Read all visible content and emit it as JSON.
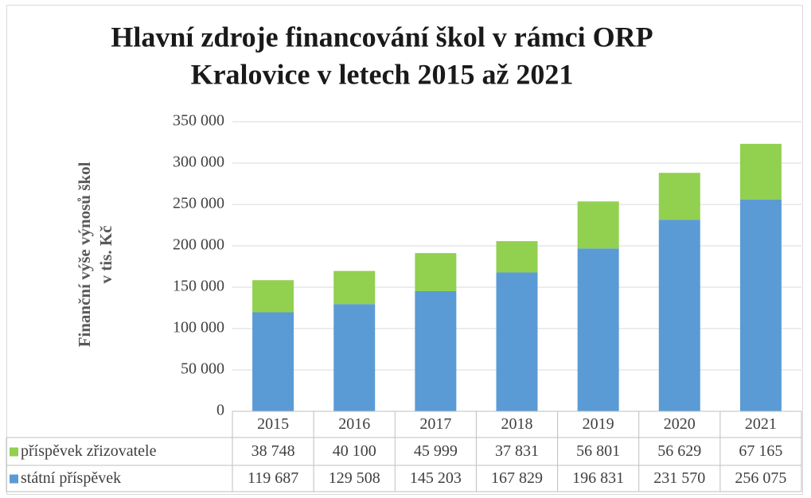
{
  "chart_data": {
    "type": "stacked_bar",
    "title": [
      "Hlavní zdroje financování škol v rámci ORP",
      "Kralovice v letech 2015 až 2021"
    ],
    "ylabel": [
      "Finanční výše výnosů škol",
      "v tis. Kč"
    ],
    "categories": [
      "2015",
      "2016",
      "2017",
      "2018",
      "2019",
      "2020",
      "2021"
    ],
    "series": [
      {
        "name": "státní příspěvek",
        "color": "#5b9bd5",
        "values": [
          119687,
          129508,
          145203,
          167829,
          196831,
          231570,
          256075
        ],
        "value_labels": [
          "119 687",
          "129 508",
          "145 203",
          "167 829",
          "196 831",
          "231 570",
          "256 075"
        ]
      },
      {
        "name": "příspěvek zřizovatele",
        "color": "#92d050",
        "values": [
          38748,
          40100,
          45999,
          37831,
          56801,
          56629,
          67165
        ],
        "value_labels": [
          "38 748",
          "40 100",
          "45 999",
          "37 831",
          "56 801",
          "56 629",
          "67 165"
        ]
      }
    ],
    "ylim": [
      0,
      350000
    ],
    "yticks": [
      0,
      {
        "value": 50000,
        "label": "50 000"
      },
      {
        "value": 100000,
        "label": "100 000"
      },
      {
        "value": 150000,
        "label": "150 000"
      },
      {
        "value": 200000,
        "label": "200 000"
      },
      {
        "value": 250000,
        "label": "250 000"
      },
      {
        "value": 300000,
        "label": "300 000"
      },
      {
        "value": 350000,
        "label": "350 000"
      }
    ],
    "grid": true,
    "data_table": true
  }
}
